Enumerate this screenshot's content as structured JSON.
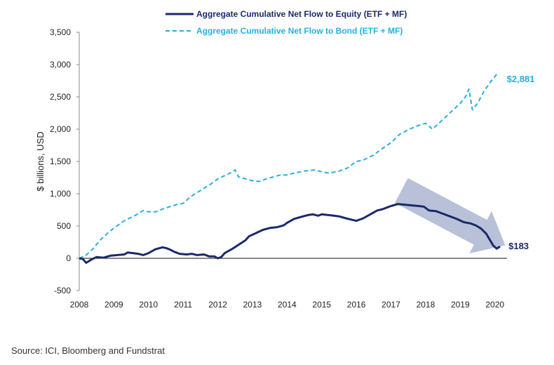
{
  "chart_data": {
    "type": "line",
    "title": "",
    "xlabel": "",
    "ylabel": "$ billions, USD",
    "ylim": [
      -500,
      3500
    ],
    "xlim": [
      2008,
      2020.35
    ],
    "yticks": [
      -500,
      0,
      500,
      1000,
      1500,
      2000,
      2500,
      3000,
      3500
    ],
    "ytick_labels": [
      "-500",
      "0",
      "500",
      "1,000",
      "1,500",
      "2,000",
      "2,500",
      "3,000",
      "3,500"
    ],
    "xticks": [
      2008,
      2009,
      2010,
      2011,
      2012,
      2013,
      2014,
      2015,
      2016,
      2017,
      2018,
      2019,
      2020
    ],
    "xtick_labels": [
      "2008",
      "2009",
      "2010",
      "2011",
      "2012",
      "2013",
      "2014",
      "2015",
      "2016",
      "2017",
      "2018",
      "2019",
      "2020"
    ],
    "legend": "top-center",
    "series": [
      {
        "name": "Aggregate Cumulative Net Flow to Equity (ETF + MF)",
        "color": "#1b2a6b",
        "style": "solid",
        "end_label": "$183",
        "x": [
          2008.0,
          2008.1,
          2008.2,
          2008.35,
          2008.5,
          2008.7,
          2008.9,
          2009.1,
          2009.3,
          2009.4,
          2009.55,
          2009.7,
          2009.85,
          2010.0,
          2010.2,
          2010.4,
          2010.5,
          2010.6,
          2010.75,
          2010.9,
          2011.1,
          2011.25,
          2011.4,
          2011.6,
          2011.75,
          2011.9,
          2012.0,
          2012.1,
          2012.2,
          2012.4,
          2012.6,
          2012.8,
          2012.9,
          2013.1,
          2013.3,
          2013.5,
          2013.7,
          2013.9,
          2014.0,
          2014.2,
          2014.4,
          2014.6,
          2014.75,
          2014.9,
          2015.0,
          2015.2,
          2015.35,
          2015.5,
          2015.7,
          2015.85,
          2016.0,
          2016.2,
          2016.4,
          2016.6,
          2016.75,
          2016.9,
          2017.0,
          2017.2,
          2017.4,
          2017.6,
          2017.8,
          2017.95,
          2018.1,
          2018.3,
          2018.5,
          2018.7,
          2018.9,
          2019.1,
          2019.3,
          2019.45,
          2019.6,
          2019.75,
          2019.85,
          2019.95,
          2020.05,
          2020.15
        ],
        "values": [
          0,
          -10,
          -70,
          -20,
          20,
          10,
          40,
          50,
          60,
          90,
          80,
          70,
          50,
          80,
          140,
          170,
          160,
          140,
          100,
          70,
          60,
          70,
          50,
          60,
          30,
          30,
          0,
          20,
          80,
          140,
          210,
          280,
          340,
          390,
          440,
          470,
          480,
          510,
          550,
          610,
          640,
          670,
          680,
          660,
          680,
          670,
          660,
          650,
          620,
          600,
          580,
          620,
          680,
          740,
          760,
          790,
          810,
          840,
          830,
          820,
          810,
          800,
          740,
          730,
          690,
          650,
          610,
          560,
          540,
          510,
          460,
          380,
          290,
          200,
          150,
          183
        ]
      },
      {
        "name": "Aggregate Cumulative Net Flow to Bond (ETF + MF)",
        "color": "#29aee0",
        "style": "dashed",
        "end_label": "$2,881",
        "x": [
          2008.0,
          2008.2,
          2008.4,
          2008.6,
          2008.8,
          2009.0,
          2009.3,
          2009.6,
          2009.85,
          2010.0,
          2010.2,
          2010.5,
          2010.8,
          2011.0,
          2011.2,
          2011.5,
          2011.8,
          2012.0,
          2012.2,
          2012.4,
          2012.5,
          2012.6,
          2012.8,
          2013.0,
          2013.2,
          2013.4,
          2013.6,
          2013.8,
          2014.0,
          2014.2,
          2014.5,
          2014.8,
          2015.0,
          2015.2,
          2015.5,
          2015.75,
          2016.0,
          2016.2,
          2016.5,
          2016.75,
          2017.0,
          2017.25,
          2017.5,
          2017.75,
          2018.0,
          2018.2,
          2018.5,
          2018.8,
          2019.0,
          2019.15,
          2019.25,
          2019.35,
          2019.5,
          2019.7,
          2019.9,
          2020.1
        ],
        "values": [
          0,
          50,
          150,
          280,
          380,
          470,
          580,
          660,
          740,
          720,
          720,
          780,
          830,
          850,
          950,
          1050,
          1150,
          1230,
          1280,
          1330,
          1370,
          1260,
          1230,
          1200,
          1190,
          1230,
          1260,
          1290,
          1290,
          1320,
          1350,
          1370,
          1340,
          1320,
          1350,
          1400,
          1500,
          1520,
          1600,
          1700,
          1790,
          1920,
          1990,
          2050,
          2090,
          2000,
          2150,
          2300,
          2400,
          2500,
          2620,
          2300,
          2400,
          2600,
          2750,
          2881
        ]
      }
    ],
    "annotations": [
      {
        "type": "arrow",
        "from": {
          "x": 2017.3,
          "y": 1050
        },
        "to": {
          "x": 2020.3,
          "y": 200
        },
        "color": "#a7b1cf"
      },
      {
        "type": "end-label",
        "text": "$2,881",
        "series": 1
      },
      {
        "type": "end-label",
        "text": "$183",
        "series": 0
      }
    ]
  },
  "footer": {
    "source": "Source: ICI, Bloomberg and Fundstrat"
  }
}
